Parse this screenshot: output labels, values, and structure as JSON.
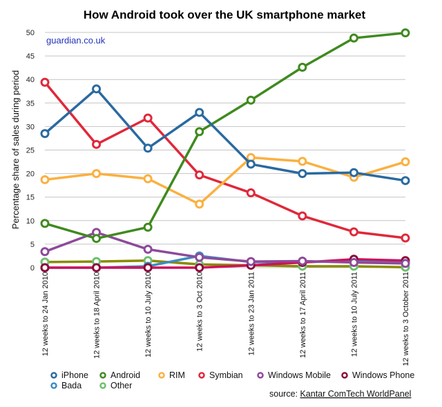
{
  "chart_data": {
    "type": "line",
    "title": "How Android took over the UK smartphone market",
    "credit": "guardian.co.uk",
    "source_prefix": "source: ",
    "source_name": "Kantar ComTech WorldPanel",
    "xlabel": "",
    "ylabel": "Percentage share of sales during period",
    "ylim": [
      0,
      50
    ],
    "yticks": [
      0,
      5,
      10,
      15,
      20,
      25,
      30,
      35,
      40,
      45,
      50
    ],
    "grid": true,
    "legend_position": "bottom",
    "categories": [
      "12 weeks to 24 Jan 2010",
      "12 weeks to 18 April 2010",
      "12 weeks to 10 July 2010",
      "12 weeks to 3 Oct 2010",
      "12 weeks to 23 Jan 2011",
      "12 weeks to 17 April 2011",
      "12 weeks to 10 July 2011",
      "12 weeks to 3 October 2011"
    ],
    "series": [
      {
        "name": "Other",
        "color": "#8a8a00",
        "marker": "#6cc06c",
        "values": [
          1.2,
          1.3,
          1.5,
          0.7,
          0.5,
          0.3,
          0.3,
          0.1
        ]
      },
      {
        "name": "Bada",
        "color": "#3d8cc4",
        "marker": "#3d8cc4",
        "values": [
          0,
          0,
          0.3,
          2.5,
          1.2,
          1.2,
          1.4,
          1.1
        ]
      },
      {
        "name": "Windows Phone",
        "color": "#d0105a",
        "marker": "#8b0a3a",
        "values": [
          0,
          0,
          0,
          0,
          0.5,
          1.1,
          1.8,
          1.5
        ]
      },
      {
        "name": "Windows Mobile",
        "color": "#8e4a9a",
        "marker": "#8e4a9a",
        "values": [
          3.4,
          7.5,
          3.9,
          2.2,
          1.3,
          1.4,
          1.1,
          0.9
        ]
      },
      {
        "name": "Symbian",
        "color": "#e0283a",
        "marker": "#e0283a",
        "values": [
          39.4,
          26.2,
          31.8,
          19.7,
          15.9,
          11.0,
          7.6,
          6.3
        ]
      },
      {
        "name": "RIM",
        "color": "#fbb040",
        "marker": "#fbb040",
        "values": [
          18.7,
          20.0,
          18.9,
          13.5,
          23.4,
          22.6,
          19.2,
          22.5
        ]
      },
      {
        "name": "Android",
        "color": "#3f8a1f",
        "marker": "#3f8a1f",
        "values": [
          9.4,
          6.2,
          8.6,
          28.9,
          35.6,
          42.6,
          48.8,
          49.9
        ]
      },
      {
        "name": "iPhone",
        "color": "#2a6aa0",
        "marker": "#2a6aa0",
        "values": [
          28.5,
          38.0,
          25.4,
          33.0,
          22.0,
          20.0,
          20.2,
          18.5
        ]
      }
    ],
    "legend": [
      {
        "name": "iPhone",
        "color": "#2a6aa0"
      },
      {
        "name": "Android",
        "color": "#3f8a1f"
      },
      {
        "name": "RIM",
        "color": "#fbb040"
      },
      {
        "name": "Symbian",
        "color": "#e0283a"
      },
      {
        "name": "Windows Mobile",
        "color": "#8e4a9a"
      },
      {
        "name": "Windows Phone",
        "color": "#8b0a3a"
      },
      {
        "name": "Bada",
        "color": "#3d8cc4"
      },
      {
        "name": "Other",
        "color": "#6cc06c"
      }
    ]
  }
}
